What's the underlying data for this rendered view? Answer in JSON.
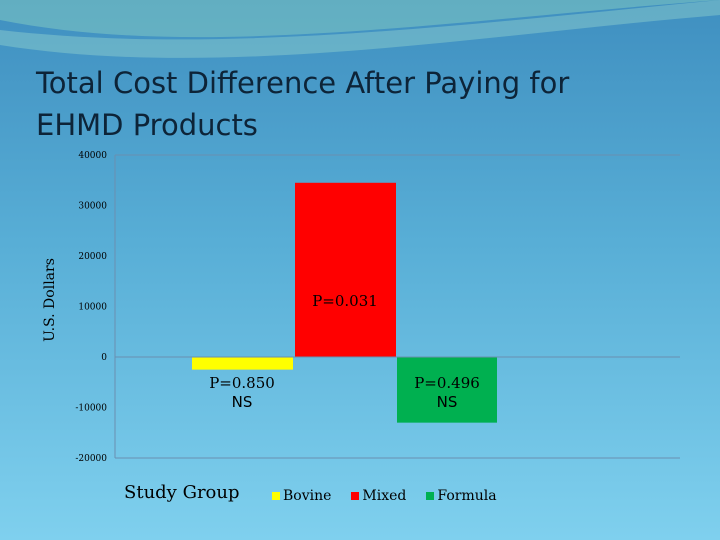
{
  "slide": {
    "title": "Total Cost Difference After Paying for EHMD Products"
  },
  "chart_data": {
    "type": "bar",
    "title": "",
    "xlabel": "Study Group",
    "ylabel": "U.S. Dollars",
    "ylim": [
      -20000,
      40000
    ],
    "yticks": [
      40000,
      30000,
      20000,
      10000,
      0,
      -10000,
      -20000
    ],
    "ytick_labels": [
      "40000",
      "30000",
      "20000",
      "10000",
      "0",
      "-10000",
      "-20000"
    ],
    "grid": false,
    "legend_position": "bottom",
    "categories": [
      "Bovine",
      "Mixed",
      "Formula"
    ],
    "values": [
      -2500,
      34500,
      -13000
    ],
    "colors": [
      "#ffff00",
      "#ff0000",
      "#00b050"
    ],
    "annotations": [
      {
        "lines": [
          "P=0.850",
          "NS"
        ],
        "series": "Bovine"
      },
      {
        "lines": [
          "P=0.031"
        ],
        "series": "Mixed"
      },
      {
        "lines": [
          "P=0.496",
          "NS"
        ],
        "series": "Formula"
      }
    ],
    "legend": [
      "Bovine",
      "Mixed",
      "Formula"
    ]
  }
}
